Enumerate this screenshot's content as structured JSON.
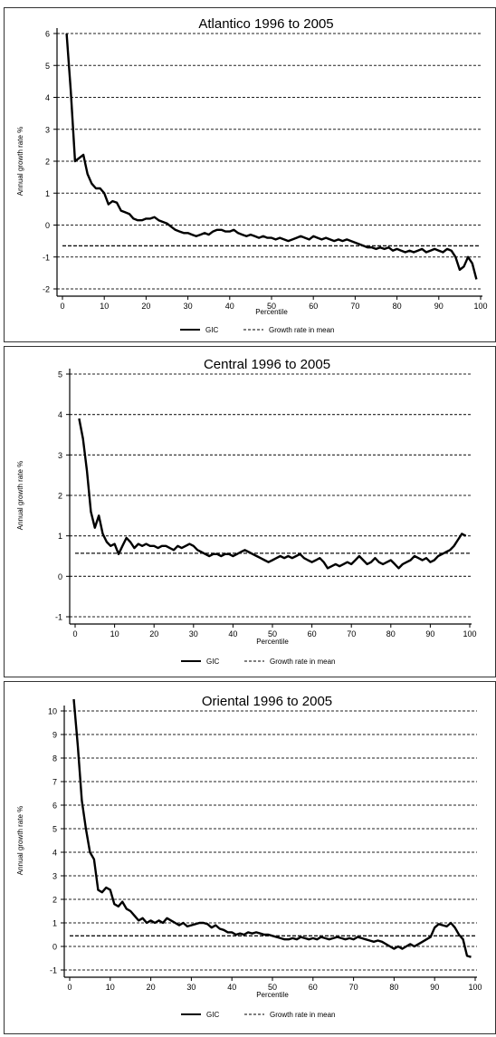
{
  "legend": {
    "gic_label": "GIC",
    "mean_label": "Growth rate in mean"
  },
  "chart_data": [
    {
      "type": "line",
      "title": "Atlantico 1996 to 2005",
      "xlabel": "Percentile",
      "ylabel": "Annual growth rate %",
      "xlim": [
        0,
        100
      ],
      "ylim": [
        -2,
        6
      ],
      "xticks": [
        0,
        10,
        20,
        30,
        40,
        50,
        60,
        70,
        80,
        90,
        100
      ],
      "yticks": [
        -2,
        -1,
        0,
        1,
        2,
        3,
        4,
        5,
        6
      ],
      "grid": "horizontal-dashed",
      "legend_position": "bottom",
      "mean_growth": -0.65,
      "series": [
        {
          "name": "GIC",
          "x": [
            1,
            2,
            3,
            4,
            5,
            6,
            7,
            8,
            9,
            10,
            11,
            12,
            13,
            14,
            15,
            16,
            17,
            18,
            19,
            20,
            21,
            22,
            23,
            24,
            25,
            26,
            27,
            28,
            29,
            30,
            31,
            32,
            33,
            34,
            35,
            36,
            37,
            38,
            39,
            40,
            41,
            42,
            43,
            44,
            45,
            46,
            47,
            48,
            49,
            50,
            51,
            52,
            53,
            54,
            55,
            56,
            57,
            58,
            59,
            60,
            61,
            62,
            63,
            64,
            65,
            66,
            67,
            68,
            69,
            70,
            71,
            72,
            73,
            74,
            75,
            76,
            77,
            78,
            79,
            80,
            81,
            82,
            83,
            84,
            85,
            86,
            87,
            88,
            89,
            90,
            91,
            92,
            93,
            94,
            95,
            96,
            97,
            98,
            99
          ],
          "values": [
            6.0,
            4.2,
            2.0,
            2.1,
            2.2,
            1.6,
            1.3,
            1.15,
            1.15,
            1.0,
            0.65,
            0.75,
            0.7,
            0.45,
            0.4,
            0.35,
            0.2,
            0.15,
            0.15,
            0.2,
            0.2,
            0.25,
            0.15,
            0.1,
            0.05,
            -0.05,
            -0.15,
            -0.2,
            -0.25,
            -0.25,
            -0.3,
            -0.35,
            -0.3,
            -0.25,
            -0.3,
            -0.2,
            -0.15,
            -0.15,
            -0.2,
            -0.2,
            -0.15,
            -0.25,
            -0.3,
            -0.35,
            -0.3,
            -0.35,
            -0.4,
            -0.35,
            -0.4,
            -0.4,
            -0.45,
            -0.4,
            -0.45,
            -0.5,
            -0.45,
            -0.4,
            -0.35,
            -0.4,
            -0.45,
            -0.35,
            -0.4,
            -0.45,
            -0.4,
            -0.45,
            -0.5,
            -0.45,
            -0.5,
            -0.45,
            -0.5,
            -0.55,
            -0.6,
            -0.65,
            -0.7,
            -0.7,
            -0.75,
            -0.7,
            -0.75,
            -0.7,
            -0.8,
            -0.75,
            -0.8,
            -0.85,
            -0.8,
            -0.85,
            -0.8,
            -0.75,
            -0.85,
            -0.8,
            -0.75,
            -0.8,
            -0.85,
            -0.75,
            -0.8,
            -1.0,
            -1.4,
            -1.3,
            -1.0,
            -1.2,
            -1.7
          ]
        },
        {
          "name": "Growth rate in mean",
          "x": [
            0,
            100
          ],
          "values": [
            -0.65,
            -0.65
          ]
        }
      ]
    },
    {
      "type": "line",
      "title": "Central 1996 to 2005",
      "xlabel": "Percentile",
      "ylabel": "Annual growth rate %",
      "xlim": [
        0,
        100
      ],
      "ylim": [
        -1,
        5
      ],
      "xticks": [
        0,
        10,
        20,
        30,
        40,
        50,
        60,
        70,
        80,
        90,
        100
      ],
      "yticks": [
        -1,
        0,
        1,
        2,
        3,
        4,
        5
      ],
      "grid": "horizontal-dashed",
      "legend_position": "bottom",
      "mean_growth": 0.57,
      "series": [
        {
          "name": "GIC",
          "x": [
            1,
            2,
            3,
            4,
            5,
            6,
            7,
            8,
            9,
            10,
            11,
            12,
            13,
            14,
            15,
            16,
            17,
            18,
            19,
            20,
            21,
            22,
            23,
            24,
            25,
            26,
            27,
            28,
            29,
            30,
            31,
            32,
            33,
            34,
            35,
            36,
            37,
            38,
            39,
            40,
            41,
            42,
            43,
            44,
            45,
            46,
            47,
            48,
            49,
            50,
            51,
            52,
            53,
            54,
            55,
            56,
            57,
            58,
            59,
            60,
            61,
            62,
            63,
            64,
            65,
            66,
            67,
            68,
            69,
            70,
            71,
            72,
            73,
            74,
            75,
            76,
            77,
            78,
            79,
            80,
            81,
            82,
            83,
            84,
            85,
            86,
            87,
            88,
            89,
            90,
            91,
            92,
            93,
            94,
            95,
            96,
            97,
            98,
            99
          ],
          "values": [
            3.9,
            3.4,
            2.6,
            1.6,
            1.2,
            1.5,
            1.05,
            0.85,
            0.75,
            0.8,
            0.55,
            0.75,
            0.95,
            0.85,
            0.7,
            0.8,
            0.75,
            0.8,
            0.75,
            0.75,
            0.7,
            0.75,
            0.75,
            0.7,
            0.65,
            0.75,
            0.7,
            0.75,
            0.8,
            0.75,
            0.65,
            0.6,
            0.55,
            0.5,
            0.55,
            0.55,
            0.5,
            0.55,
            0.55,
            0.5,
            0.55,
            0.6,
            0.65,
            0.6,
            0.55,
            0.5,
            0.45,
            0.4,
            0.35,
            0.4,
            0.45,
            0.5,
            0.45,
            0.5,
            0.45,
            0.5,
            0.55,
            0.45,
            0.4,
            0.35,
            0.4,
            0.45,
            0.35,
            0.2,
            0.25,
            0.3,
            0.25,
            0.3,
            0.35,
            0.3,
            0.4,
            0.5,
            0.4,
            0.3,
            0.35,
            0.45,
            0.35,
            0.3,
            0.35,
            0.4,
            0.3,
            0.2,
            0.3,
            0.35,
            0.4,
            0.5,
            0.45,
            0.4,
            0.45,
            0.35,
            0.4,
            0.5,
            0.55,
            0.6,
            0.65,
            0.75,
            0.9,
            1.05,
            1.0
          ]
        },
        {
          "name": "Growth rate in mean",
          "x": [
            0,
            100
          ],
          "values": [
            0.57,
            0.57
          ]
        }
      ]
    },
    {
      "type": "line",
      "title": "Oriental 1996 to 2005",
      "xlabel": "Percentile",
      "ylabel": "Annual growth rate %",
      "xlim": [
        0,
        100
      ],
      "ylim": [
        -1,
        10
      ],
      "xticks": [
        0,
        10,
        20,
        30,
        40,
        50,
        60,
        70,
        80,
        90,
        100
      ],
      "yticks": [
        -1,
        0,
        1,
        2,
        3,
        4,
        5,
        6,
        7,
        8,
        9,
        10
      ],
      "grid": "horizontal-dashed",
      "legend_position": "bottom",
      "mean_growth": 0.45,
      "series": [
        {
          "name": "GIC",
          "x": [
            1,
            2,
            3,
            4,
            5,
            6,
            7,
            8,
            9,
            10,
            11,
            12,
            13,
            14,
            15,
            16,
            17,
            18,
            19,
            20,
            21,
            22,
            23,
            24,
            25,
            26,
            27,
            28,
            29,
            30,
            31,
            32,
            33,
            34,
            35,
            36,
            37,
            38,
            39,
            40,
            41,
            42,
            43,
            44,
            45,
            46,
            47,
            48,
            49,
            50,
            51,
            52,
            53,
            54,
            55,
            56,
            57,
            58,
            59,
            60,
            61,
            62,
            63,
            64,
            65,
            66,
            67,
            68,
            69,
            70,
            71,
            72,
            73,
            74,
            75,
            76,
            77,
            78,
            79,
            80,
            81,
            82,
            83,
            84,
            85,
            86,
            87,
            88,
            89,
            90,
            91,
            92,
            93,
            94,
            95,
            96,
            97,
            98,
            99
          ],
          "values": [
            10.5,
            8.5,
            6.2,
            5.0,
            4.0,
            3.7,
            2.4,
            2.3,
            2.5,
            2.4,
            1.8,
            1.7,
            1.9,
            1.6,
            1.5,
            1.3,
            1.1,
            1.2,
            1.0,
            1.1,
            1.0,
            1.1,
            1.0,
            1.2,
            1.1,
            1.0,
            0.9,
            1.0,
            0.85,
            0.9,
            0.95,
            1.0,
            1.0,
            0.95,
            0.8,
            0.9,
            0.75,
            0.7,
            0.6,
            0.6,
            0.5,
            0.55,
            0.5,
            0.6,
            0.55,
            0.6,
            0.55,
            0.5,
            0.5,
            0.45,
            0.4,
            0.35,
            0.3,
            0.3,
            0.35,
            0.3,
            0.4,
            0.35,
            0.3,
            0.35,
            0.3,
            0.4,
            0.35,
            0.3,
            0.35,
            0.4,
            0.35,
            0.3,
            0.35,
            0.3,
            0.4,
            0.35,
            0.3,
            0.25,
            0.2,
            0.25,
            0.2,
            0.1,
            0.0,
            -0.1,
            0.0,
            -0.1,
            0.0,
            0.1,
            0.0,
            0.1,
            0.2,
            0.3,
            0.4,
            0.8,
            0.95,
            0.9,
            0.85,
            1.0,
            0.8,
            0.5,
            0.3,
            -0.4,
            -0.45
          ]
        },
        {
          "name": "Growth rate in mean",
          "x": [
            0,
            100
          ],
          "values": [
            0.45,
            0.45
          ]
        }
      ]
    }
  ]
}
